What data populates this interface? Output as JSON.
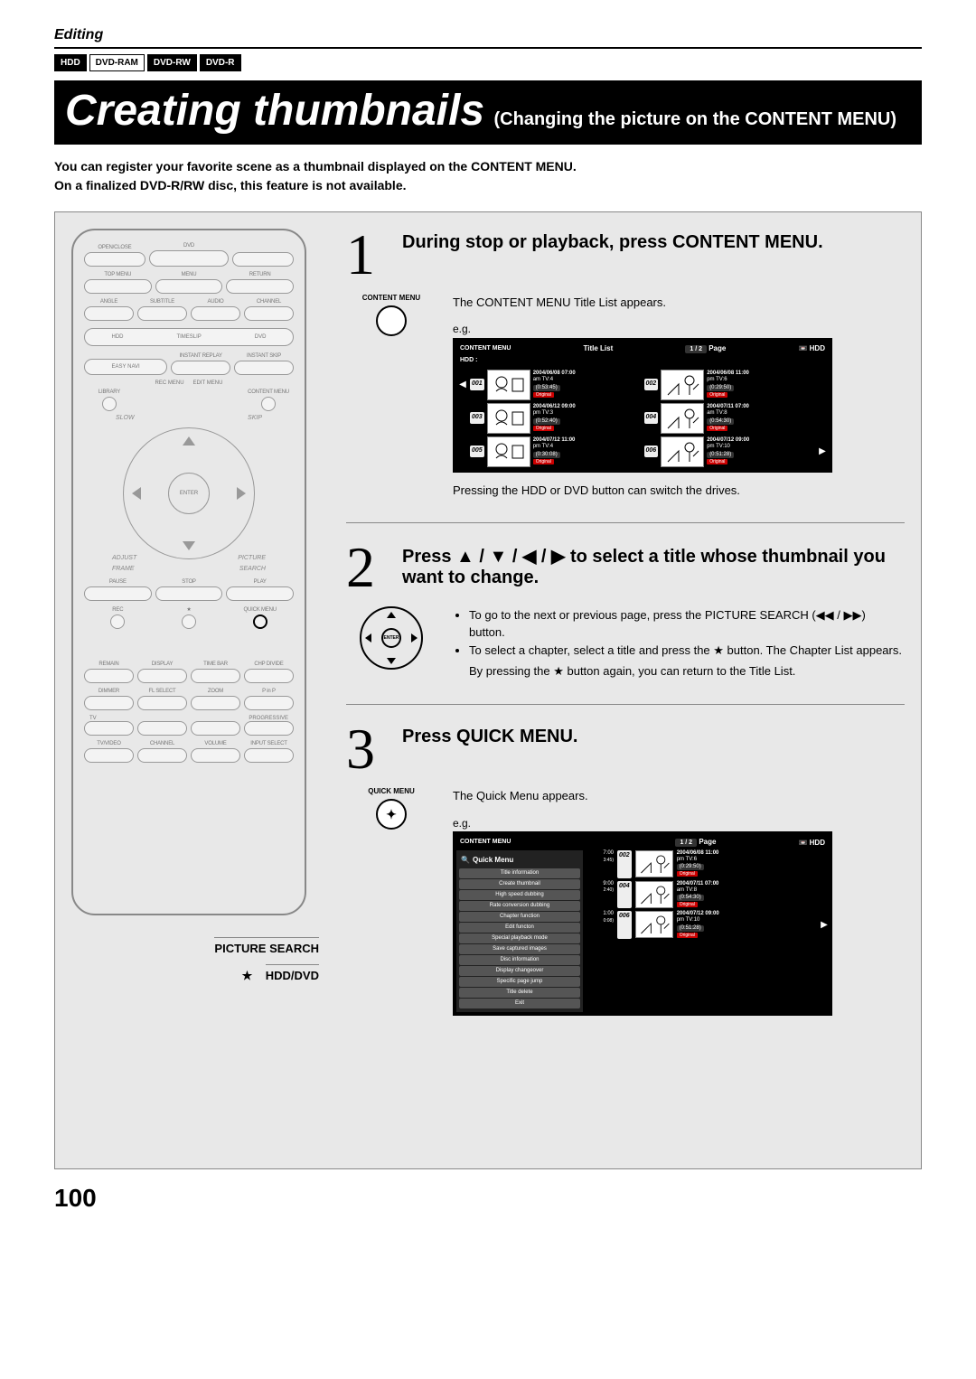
{
  "header": {
    "section": "Editing",
    "mediaTags": [
      "HDD",
      "DVD-RAM",
      "DVD-RW",
      "DVD-R"
    ],
    "titleMain": "Creating thumbnails",
    "titleSub": "(Changing the picture on the CONTENT MENU)",
    "intro1": "You can register your favorite scene as a thumbnail displayed on the CONTENT MENU.",
    "intro2": "On a finalized DVD-R/RW disc, this feature is not available."
  },
  "remote": {
    "labels": {
      "openclose": "OPEN/CLOSE",
      "dvd": "DVD",
      "topmenu": "TOP MENU",
      "menu": "MENU",
      "return": "RETURN",
      "angle": "ANGLE",
      "subtitle": "SUBTITLE",
      "audio": "AUDIO",
      "channel": "CHANNEL",
      "hdd": "HDD",
      "timeslip": "TIMESLIP",
      "dvdBtn": "DVD",
      "instantreplay": "INSTANT REPLAY",
      "instantskip": "INSTANT SKIP",
      "easynavi": "EASY NAVI",
      "recmenu": "REC MENU",
      "editmenu": "EDIT MENU",
      "library": "LIBRARY",
      "contentmenu": "CONTENT MENU",
      "slow": "SLOW",
      "skip": "SKIP",
      "frame": "FRAME",
      "adjust": "ADJUST",
      "picture": "PICTURE",
      "search": "SEARCH",
      "enter": "ENTER",
      "pause": "PAUSE",
      "stop": "STOP",
      "play": "PLAY",
      "rec": "REC",
      "star": "★",
      "quickmenu": "QUICK MENU",
      "remain": "REMAIN",
      "display": "DISPLAY",
      "timebar": "TIME BAR",
      "chpdivide": "CHP DIVIDE",
      "dimmer": "DIMMER",
      "flselect": "FL SELECT",
      "zoom": "ZOOM",
      "pinp": "P in P",
      "tv": "TV",
      "progressive": "PROGRESSIVE",
      "tvvideo": "TV/VIDEO",
      "channel2": "CHANNEL",
      "volume": "VOLUME",
      "inputselect": "INPUT SELECT"
    },
    "callouts": {
      "pictureSearch": "PICTURE SEARCH",
      "hdddvd": "HDD/DVD",
      "star": "★"
    }
  },
  "steps": {
    "s1": {
      "num": "1",
      "title": "During stop or playback, press CONTENT MENU.",
      "iconLabel": "CONTENT MENU",
      "desc": "The CONTENT MENU Title List appears.",
      "eg": "e.g.",
      "screen": {
        "logo": "CONTENT MENU",
        "headerTitle": "Title List",
        "page": "1 / 2",
        "pageLbl": "Page",
        "drive": "HDD",
        "driveSub": "HDD :",
        "items": [
          {
            "n": "001",
            "date": "2004/06/08 07:00",
            "ch": "am TV:4",
            "dur": "(0:53:45)",
            "tag": "Original"
          },
          {
            "n": "002",
            "date": "2004/06/08 11:00",
            "ch": "pm TV:6",
            "dur": "(0:29:50)",
            "tag": "Original"
          },
          {
            "n": "003",
            "date": "2004/06/12 09:00",
            "ch": "pm TV:3",
            "dur": "(0:52:40)",
            "tag": "Original"
          },
          {
            "n": "004",
            "date": "2004/07/11 07:00",
            "ch": "am TV:8",
            "dur": "(0:54:30)",
            "tag": "Original"
          },
          {
            "n": "005",
            "date": "2004/07/12 11:00",
            "ch": "pm TV:4",
            "dur": "(0:30:08)",
            "tag": "Original"
          },
          {
            "n": "006",
            "date": "2004/07/12 09:00",
            "ch": "pm TV:10",
            "dur": "(0:51:28)",
            "tag": "Original"
          }
        ]
      },
      "note": "Pressing the HDD or DVD button can switch the drives."
    },
    "s2": {
      "num": "2",
      "title": "Press ▲ / ▼ / ◀ / ▶ to select a title whose thumbnail you want to change.",
      "bullets": [
        "To go to the next or previous page, press the PICTURE SEARCH (◀◀ / ▶▶) button.",
        "To select a chapter, select a title and press the ★ button. The Chapter List appears."
      ],
      "tail": "By pressing the ★ button again, you can return to the Title List."
    },
    "s3": {
      "num": "3",
      "title": "Press QUICK MENU.",
      "iconLabel": "QUICK MENU",
      "desc": "The Quick Menu appears.",
      "eg": "e.g.",
      "screen": {
        "qmTitle": "Quick Menu",
        "page": "1 / 2",
        "pageLbl": "Page",
        "drive": "HDD",
        "menuItems": [
          "Title information",
          "Create thumbnail",
          "High speed dubbing",
          "Rate conversion dubbing",
          "Chapter function",
          "Edit functon",
          "Special playback mode",
          "Save captured images",
          "Disc information",
          "Display changeover",
          "Specific page jump",
          "Title delete",
          "Exit"
        ],
        "right": [
          {
            "t": "7:00",
            "sep": "3:45)"
          },
          {
            "n": "002",
            "date": "2004/06/08 11:00",
            "ch": "pm TV:6",
            "dur": "(0:29:50)",
            "tag": "Original"
          },
          {
            "t": "9:00",
            "sep": "2:40)"
          },
          {
            "n": "004",
            "date": "2004/07/11 07:00",
            "ch": "am TV:8",
            "dur": "(0:54:30)",
            "tag": "Original"
          },
          {
            "t": "1:00",
            "sep": "0:08)"
          },
          {
            "n": "006",
            "date": "2004/07/12 09:00",
            "ch": "pm TV:10",
            "dur": "(0:51:28)",
            "tag": "Original"
          }
        ]
      }
    }
  },
  "pageNumber": "100",
  "colors": {
    "bgGray": "#e8e8e8",
    "black": "#000000",
    "red": "#cc0000"
  }
}
